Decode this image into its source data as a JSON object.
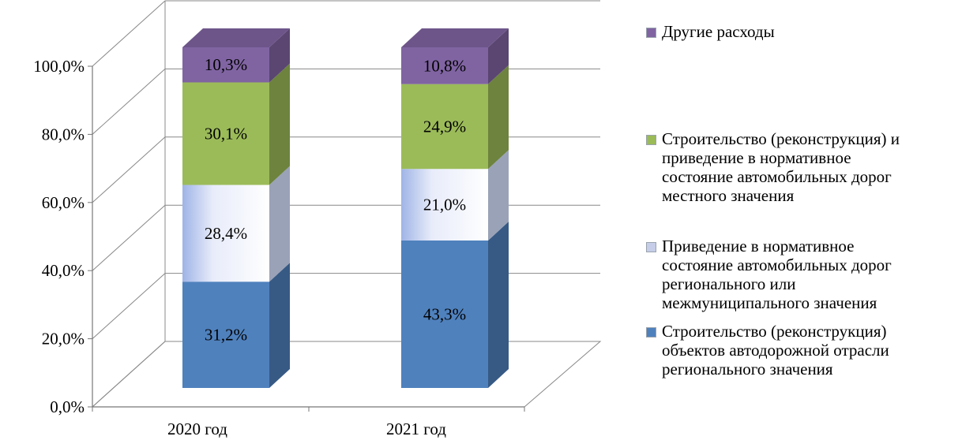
{
  "chart_data": {
    "type": "bar",
    "stacked": true,
    "three_d": true,
    "categories": [
      "2020 год",
      "2021 год"
    ],
    "series": [
      {
        "name": "Строительство (реконструкция) объектов автодорожной отрасли регионального значения",
        "values": [
          31.2,
          43.3
        ],
        "labels": [
          "31,2%",
          "43,3%"
        ],
        "color": "#4f81bd"
      },
      {
        "name": "Приведение в нормативное состояние автомобильных дорог регионального или межмуниципального значения",
        "values": [
          28.4,
          21.0
        ],
        "labels": [
          "28,4%",
          "21,0%"
        ],
        "color": "#dde3f6"
      },
      {
        "name": "Строительство (реконструкция) и приведение в нормативное состояние автомобильных дорог местного значения",
        "values": [
          30.1,
          24.9
        ],
        "labels": [
          "30,1%",
          "24,9%"
        ],
        "color": "#9bbb59"
      },
      {
        "name": "Другие расходы",
        "values": [
          10.3,
          10.8
        ],
        "labels": [
          "10,3%",
          "10,8%"
        ],
        "color": "#8064a2"
      }
    ],
    "y_ticks": [
      "0,0%",
      "20,0%",
      "40,0%",
      "60,0%",
      "80,0%",
      "100,0%"
    ],
    "ylim": [
      0,
      100
    ],
    "grid": true,
    "legend_position": "right",
    "title": "",
    "xlabel": "",
    "ylabel": ""
  },
  "legend": {
    "items": [
      {
        "label": "Другие расходы",
        "color": "#8064a2"
      },
      {
        "label": "Строительство (реконструкция) и\nприведение в нормативное\nсостояние автомобильных дорог\nместного значения",
        "color": "#9bbb59"
      },
      {
        "label": "Приведение в нормативное\nсостояние автомобильных дорог\nрегионального или\nмежмуниципального значения",
        "color": "#c5cde8"
      },
      {
        "label": "Строительство (реконструкция)\nобъектов автодорожной отрасли\nрегионального значения",
        "color": "#4f81bd"
      }
    ]
  }
}
